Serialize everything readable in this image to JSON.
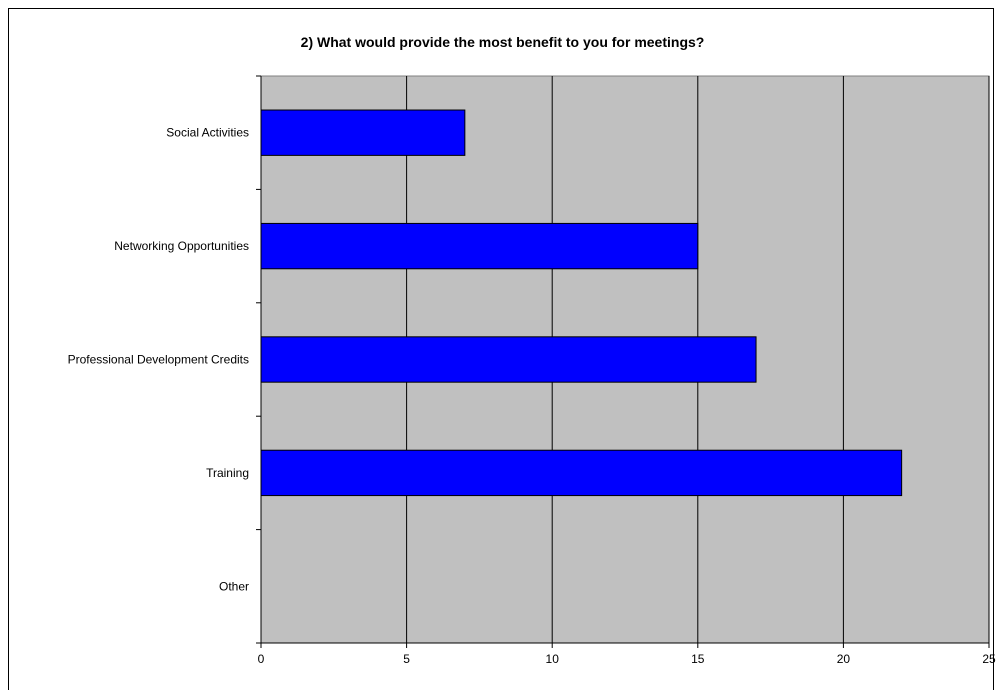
{
  "chart_data": {
    "type": "bar",
    "orientation": "horizontal",
    "title": "2) What would provide the most benefit to you for meetings?",
    "xlabel": "",
    "ylabel": "",
    "categories": [
      "Social Activities",
      "Networking Opportunities",
      "Professional Development Credits",
      "Training",
      "Other"
    ],
    "values": [
      7,
      15,
      17,
      22,
      0
    ],
    "xlim": [
      0,
      25
    ],
    "x_ticks": [
      "0",
      "5",
      "10",
      "15",
      "20",
      "25"
    ],
    "grid": "vertical",
    "legend": "none",
    "colors": {
      "bar": "#0000ff",
      "plot_background": "#c0c0c0",
      "gridline": "#000000"
    }
  }
}
